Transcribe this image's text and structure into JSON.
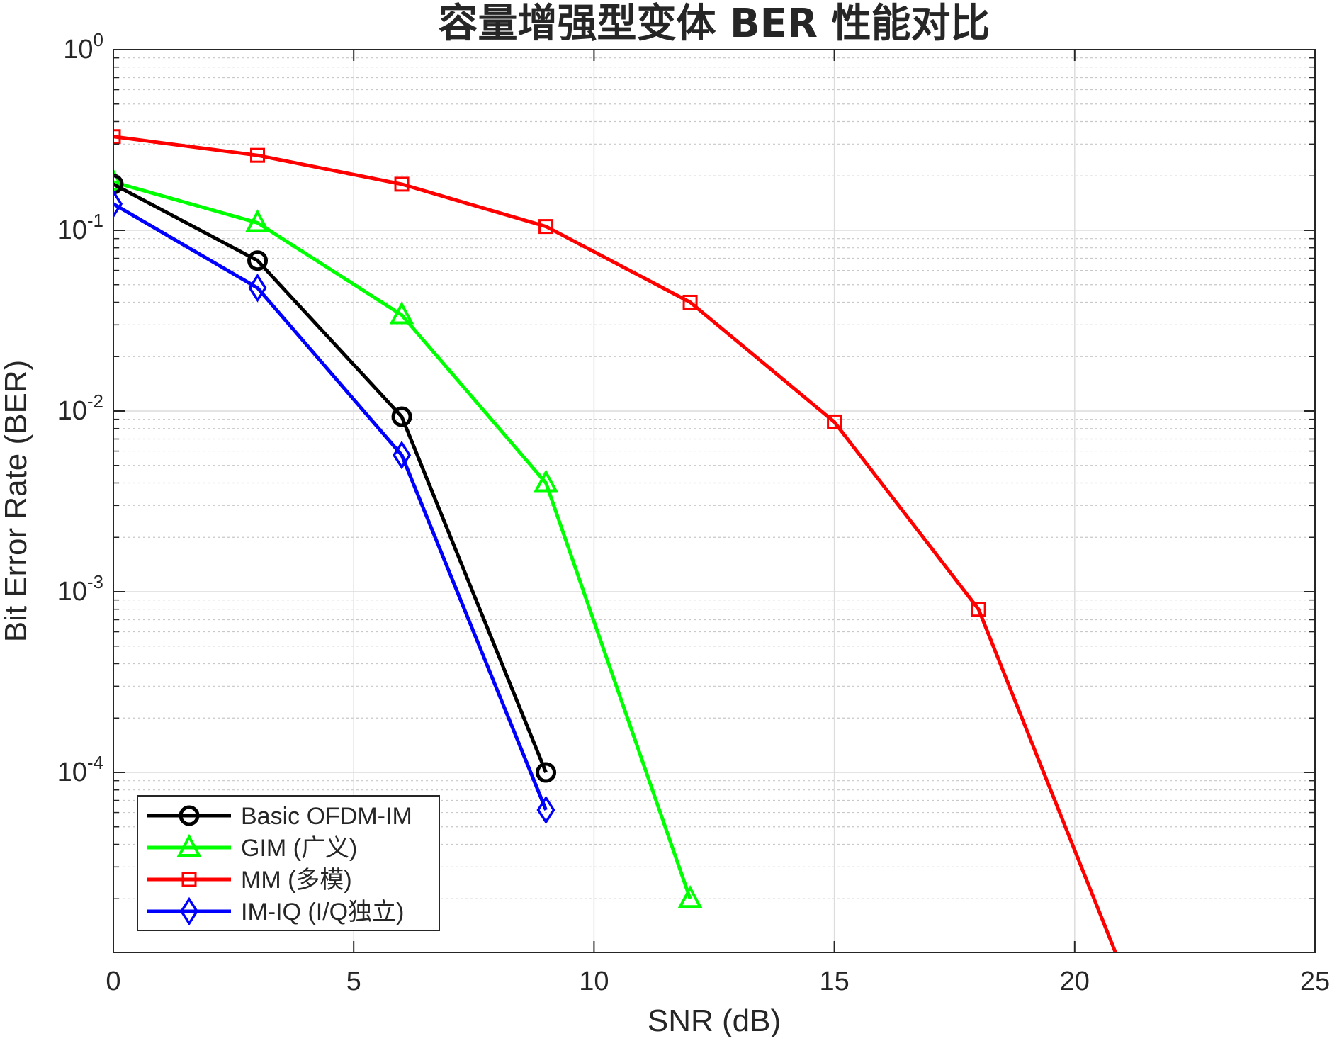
{
  "chart_data": {
    "type": "line",
    "title": "容量增强型变体 BER 性能对比",
    "xlabel": "SNR (dB)",
    "ylabel": "Bit Error Rate (BER)",
    "xlim": [
      0,
      25
    ],
    "ylim": [
      1.5e-05,
      1
    ],
    "yscale": "log",
    "grid": true,
    "legend_position": "bottom-left",
    "x_ticks": [
      {
        "value": 0,
        "label": "0"
      },
      {
        "value": 5,
        "label": "5"
      },
      {
        "value": 10,
        "label": "10"
      },
      {
        "value": 15,
        "label": "15"
      },
      {
        "value": 20,
        "label": "20"
      },
      {
        "value": 25,
        "label": "25"
      }
    ],
    "y_ticks": [
      {
        "value": 1,
        "base": "10",
        "exp": "0"
      },
      {
        "value": 0.1,
        "base": "10",
        "exp": "-1"
      },
      {
        "value": 0.01,
        "base": "10",
        "exp": "-2"
      },
      {
        "value": 0.001,
        "base": "10",
        "exp": "-3"
      },
      {
        "value": 0.0001,
        "base": "10",
        "exp": "-4"
      }
    ],
    "series": [
      {
        "name": "Basic OFDM-IM",
        "color": "#000000",
        "marker": "circle",
        "x": [
          0,
          3,
          6,
          9
        ],
        "y": [
          0.18,
          0.068,
          0.0093,
          0.0001
        ]
      },
      {
        "name": "GIM (广义)",
        "color": "#00ff00",
        "marker": "triangle",
        "x": [
          0,
          3,
          6,
          9,
          12
        ],
        "y": [
          0.185,
          0.11,
          0.034,
          0.004,
          2e-05
        ]
      },
      {
        "name": "MM (多模)",
        "color": "#ff0000",
        "marker": "square",
        "x": [
          0,
          3,
          6,
          9,
          12,
          15,
          18,
          21
        ],
        "y": [
          0.33,
          0.26,
          0.18,
          0.105,
          0.04,
          0.0087,
          0.0008,
          8e-06
        ]
      },
      {
        "name": "IM-IQ (I/Q独立)",
        "color": "#0000ff",
        "marker": "diamond",
        "x": [
          0,
          3,
          6,
          9
        ],
        "y": [
          0.14,
          0.048,
          0.0057,
          6.2e-05
        ]
      }
    ]
  }
}
